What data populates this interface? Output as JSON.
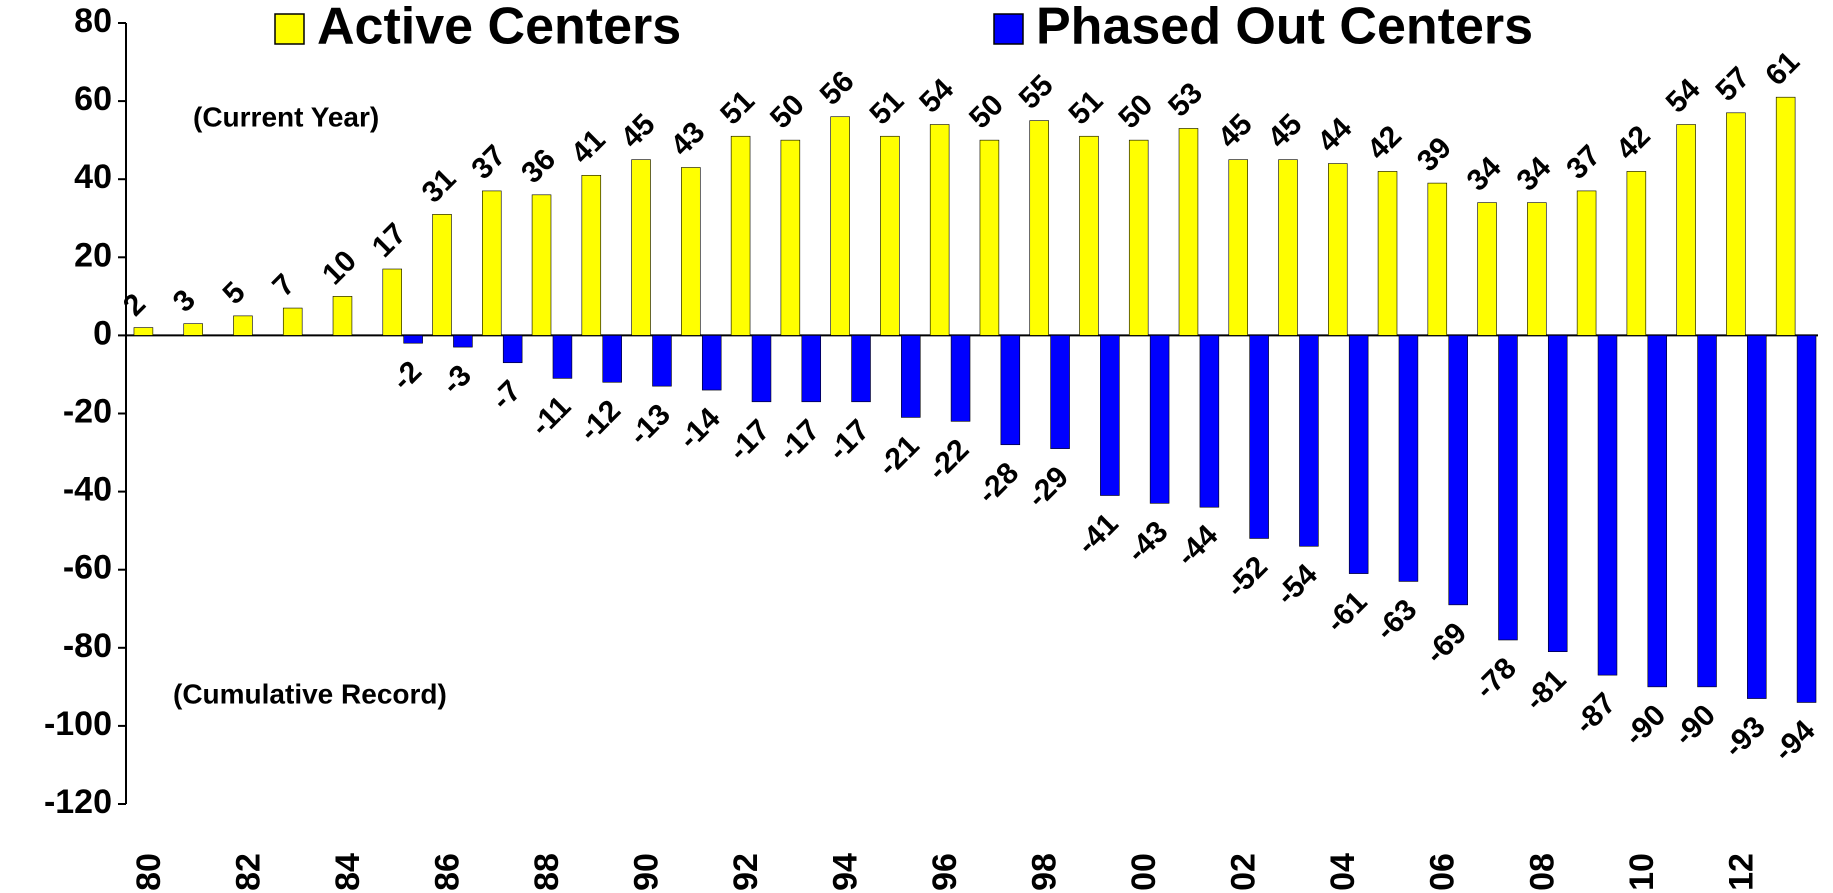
{
  "chart_data": {
    "type": "bar",
    "annotations": [
      "(Current Year)",
      "(Cumulative Record)"
    ],
    "categories": [
      "80",
      null,
      "82",
      null,
      "84",
      null,
      "86",
      null,
      "88",
      null,
      "90",
      null,
      "92",
      null,
      "94",
      null,
      "96",
      null,
      "98",
      null,
      "00",
      null,
      "02",
      null,
      "04",
      null,
      "06",
      null,
      "08",
      null,
      "10",
      null,
      "12",
      null
    ],
    "series": [
      {
        "name": "Active Centers",
        "color": "#ffff00",
        "values": [
          2,
          3,
          5,
          7,
          10,
          17,
          31,
          37,
          36,
          41,
          45,
          43,
          51,
          50,
          56,
          51,
          54,
          50,
          55,
          51,
          50,
          53,
          45,
          45,
          44,
          42,
          39,
          34,
          34,
          37,
          42,
          54,
          57,
          61
        ]
      },
      {
        "name": "Phased Out Centers",
        "color": "#0000ff",
        "values": [
          null,
          null,
          null,
          null,
          null,
          -2,
          -3,
          -7,
          -11,
          -12,
          -13,
          -14,
          -17,
          -17,
          -17,
          -21,
          -22,
          -28,
          -29,
          -41,
          -43,
          -44,
          -52,
          -54,
          -61,
          -63,
          -69,
          -78,
          -81,
          -87,
          -90,
          -90,
          -93,
          -94
        ]
      }
    ],
    "ylim": [
      -120,
      80
    ],
    "yticks": [
      -120,
      -100,
      -80,
      -60,
      -40,
      -20,
      0,
      20,
      40,
      60,
      80
    ],
    "grid": false,
    "legend": "top"
  }
}
